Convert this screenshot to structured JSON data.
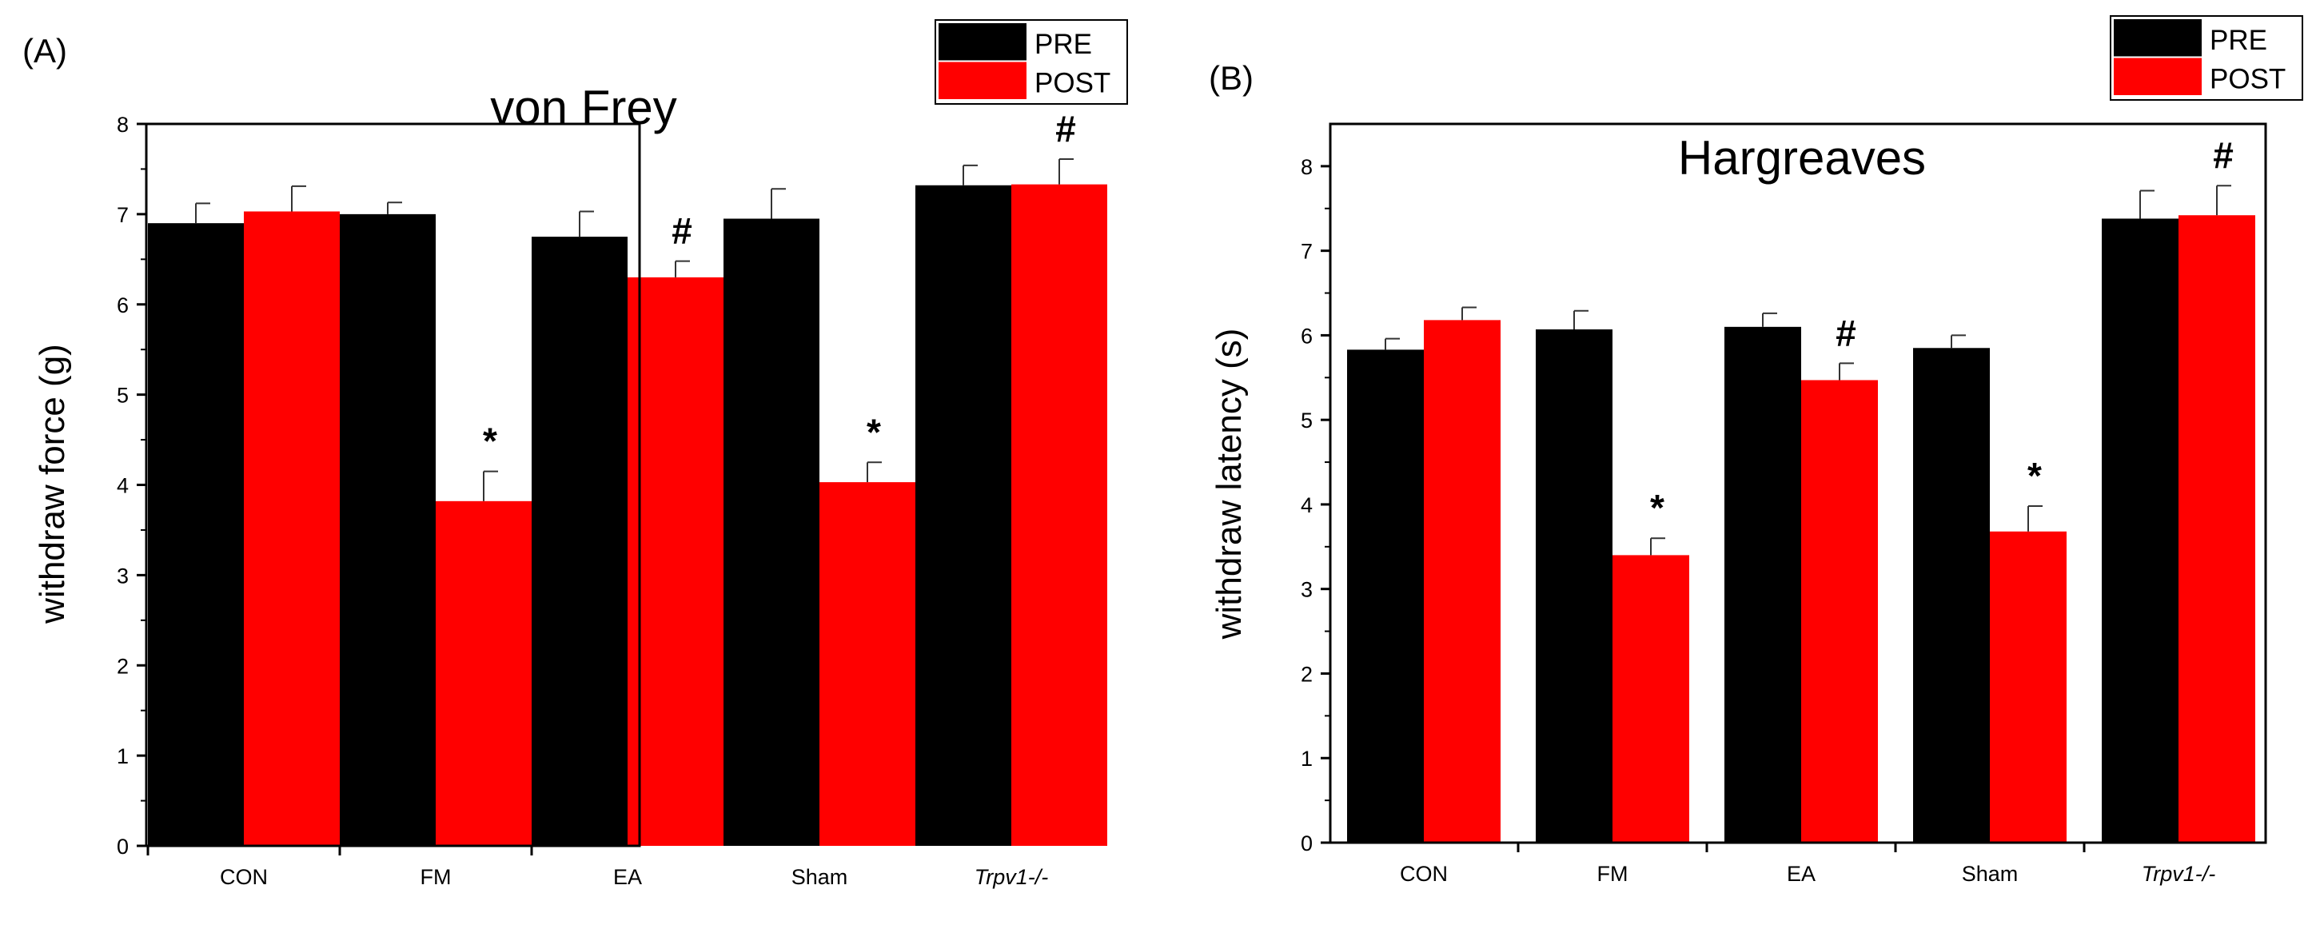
{
  "chart_data": [
    {
      "type": "bar",
      "panel_label": "(A)",
      "title": "von Frey",
      "ylabel": "withdraw force (g)",
      "xlabel": "",
      "ylim": [
        0,
        8
      ],
      "yticks": [
        "0",
        "1",
        "2",
        "3",
        "4",
        "5",
        "6",
        "7",
        "8"
      ],
      "categories": [
        "CON",
        "FM",
        "EA",
        "Sham",
        "Trpv1-/-"
      ],
      "italic_categories": [
        4
      ],
      "legend_position": "top-right",
      "series": [
        {
          "name": "PRE",
          "color": "#000000",
          "values": [
            6.9,
            7.0,
            6.75,
            6.95,
            7.32
          ],
          "errors": [
            0.22,
            0.13,
            0.28,
            0.33,
            0.22
          ]
        },
        {
          "name": "POST",
          "color": "#ff0000",
          "values": [
            7.03,
            3.82,
            6.3,
            4.03,
            7.33
          ],
          "errors": [
            0.28,
            0.33,
            0.18,
            0.22,
            0.28
          ]
        }
      ],
      "annotations": [
        {
          "category": 1,
          "series": 1,
          "text": "*"
        },
        {
          "category": 2,
          "series": 1,
          "text": "#"
        },
        {
          "category": 3,
          "series": 1,
          "text": "*"
        },
        {
          "category": 4,
          "series": 1,
          "text": "#"
        }
      ]
    },
    {
      "type": "bar",
      "panel_label": "(B)",
      "title": "Hargreaves",
      "ylabel": "withdraw latency (s)",
      "xlabel": "",
      "ylim": [
        0,
        8.5
      ],
      "yticks": [
        "0",
        "1",
        "2",
        "3",
        "4",
        "5",
        "6",
        "7",
        "8"
      ],
      "categories": [
        "CON",
        "FM",
        "EA",
        "Sham",
        "Trpv1-/-"
      ],
      "italic_categories": [
        4
      ],
      "legend_position": "top-right",
      "series": [
        {
          "name": "PRE",
          "color": "#000000",
          "values": [
            5.83,
            6.07,
            6.1,
            5.85,
            7.38
          ],
          "errors": [
            0.13,
            0.22,
            0.16,
            0.15,
            0.33
          ]
        },
        {
          "name": "POST",
          "color": "#ff0000",
          "values": [
            6.18,
            3.4,
            5.47,
            3.68,
            7.42
          ],
          "errors": [
            0.15,
            0.2,
            0.2,
            0.3,
            0.35
          ]
        }
      ],
      "annotations": [
        {
          "category": 1,
          "series": 1,
          "text": "*"
        },
        {
          "category": 2,
          "series": 1,
          "text": "#"
        },
        {
          "category": 3,
          "series": 1,
          "text": "*"
        },
        {
          "category": 4,
          "series": 1,
          "text": "#"
        }
      ]
    }
  ]
}
